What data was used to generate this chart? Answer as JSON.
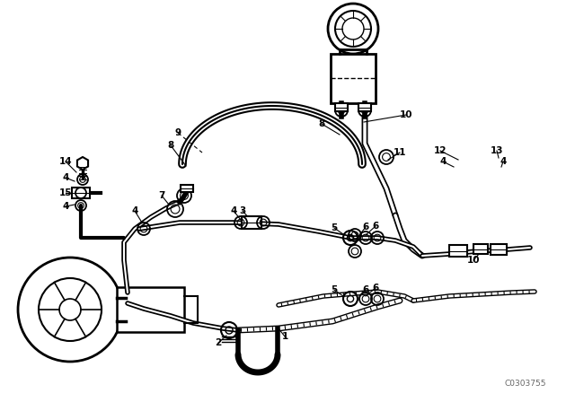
{
  "bg_color": "#ffffff",
  "line_color": "#000000",
  "watermark": "C0303755",
  "fig_w": 6.4,
  "fig_h": 4.48,
  "dpi": 100
}
